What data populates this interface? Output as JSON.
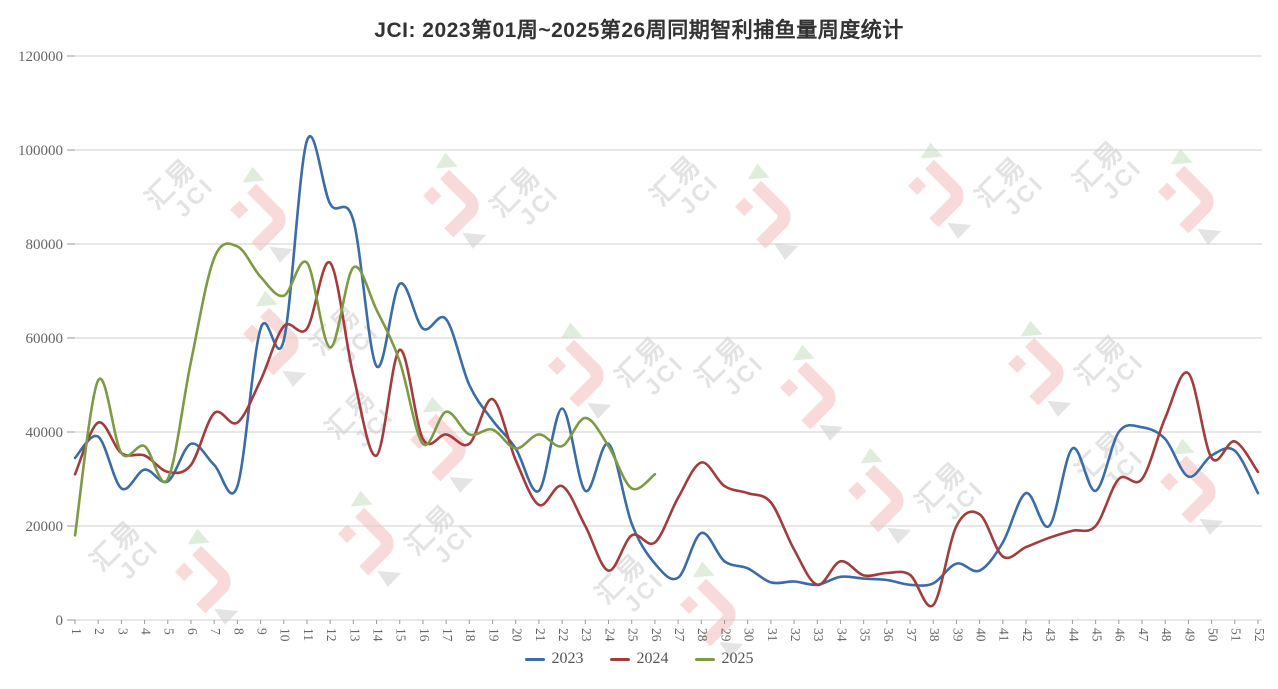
{
  "title": "JCI: 2023第01周~2025第26周同期智利捕鱼量周度统计",
  "watermark": {
    "brand_cn": "汇易",
    "brand_en": "JCI"
  },
  "axis": {
    "y_tick_labels": [
      "0",
      "20000",
      "40000",
      "60000",
      "80000",
      "100000",
      "120000"
    ]
  },
  "legend": {
    "items": [
      "2023",
      "2024",
      "2025"
    ]
  },
  "chart_data": {
    "type": "line",
    "title": "JCI: 2023第01周~2025第26周同期智利捕鱼量周度统计",
    "xlabel": "",
    "ylabel": "",
    "x": [
      1,
      2,
      3,
      4,
      5,
      6,
      7,
      8,
      9,
      10,
      11,
      12,
      13,
      14,
      15,
      16,
      17,
      18,
      19,
      20,
      21,
      22,
      23,
      24,
      25,
      26,
      27,
      28,
      29,
      30,
      31,
      32,
      33,
      34,
      35,
      36,
      37,
      38,
      39,
      40,
      41,
      42,
      43,
      44,
      45,
      46,
      47,
      48,
      49,
      50,
      51,
      52
    ],
    "ylim": [
      0,
      120000
    ],
    "y_ticks": [
      0,
      20000,
      40000,
      60000,
      80000,
      100000,
      120000
    ],
    "grid": true,
    "smooth": true,
    "legend_position": "bottom",
    "series": [
      {
        "name": "2023",
        "color": "#3a6ca6",
        "values": [
          34500,
          39000,
          28000,
          32000,
          29500,
          37500,
          33000,
          28500,
          62000,
          59500,
          102000,
          88500,
          85000,
          54000,
          71500,
          62000,
          64000,
          50000,
          42500,
          36500,
          27500,
          45000,
          27500,
          37500,
          20500,
          12000,
          9000,
          18500,
          12500,
          11000,
          8000,
          8200,
          7500,
          9200,
          8800,
          8500,
          7500,
          7800,
          12000,
          10500,
          16500,
          27000,
          20000,
          36500,
          27500,
          40000,
          41000,
          38500,
          30500,
          35000,
          36000,
          27000
        ]
      },
      {
        "name": "2024",
        "color": "#a33c3c",
        "values": [
          31000,
          42000,
          35500,
          35000,
          31500,
          33000,
          44000,
          42000,
          51000,
          62500,
          62000,
          76000,
          52000,
          35000,
          57500,
          38500,
          39500,
          37500,
          47000,
          34000,
          24500,
          28500,
          20000,
          10500,
          18000,
          16500,
          26000,
          33500,
          28500,
          27000,
          25000,
          15000,
          7500,
          12500,
          9500,
          10000,
          9600,
          3200,
          20000,
          22500,
          13500,
          15500,
          17500,
          19000,
          20000,
          30000,
          30000,
          43000,
          52500,
          34500,
          38000,
          31500
        ]
      },
      {
        "name": "2025",
        "color": "#7e9a43",
        "values": [
          18000,
          51000,
          35500,
          37000,
          30000,
          55000,
          77000,
          79500,
          73000,
          69000,
          76000,
          58000,
          75000,
          66000,
          55000,
          37500,
          44300,
          39500,
          40500,
          36500,
          39500,
          37000,
          43000,
          37000,
          28000,
          31000
        ]
      }
    ]
  }
}
